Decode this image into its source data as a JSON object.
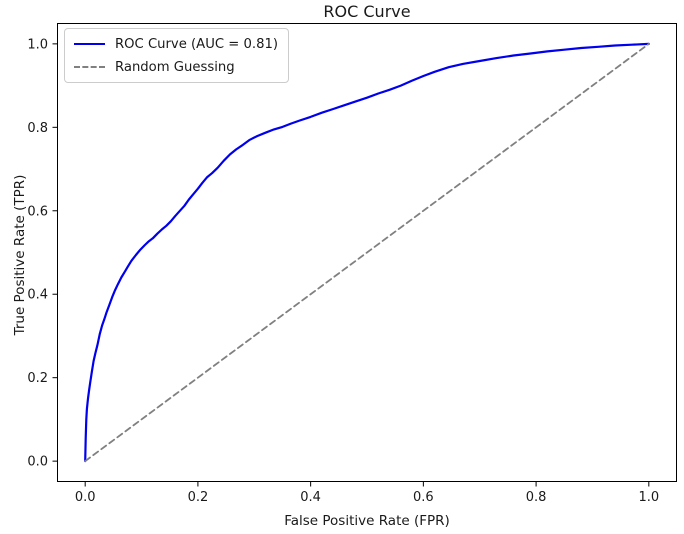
{
  "figure": {
    "background": "#ffffff"
  },
  "chart_data": {
    "type": "line",
    "title": "ROC Curve",
    "xlabel": "False Positive Rate (FPR)",
    "ylabel": "True Positive Rate (TPR)",
    "xlim": [
      -0.05,
      1.05
    ],
    "ylim": [
      -0.05,
      1.05
    ],
    "xticks": [
      0.0,
      0.2,
      0.4,
      0.6,
      0.8,
      1.0
    ],
    "xtick_labels": [
      "0.0",
      "0.2",
      "0.4",
      "0.6",
      "0.8",
      "1.0"
    ],
    "yticks": [
      0.0,
      0.2,
      0.4,
      0.6,
      0.8,
      1.0
    ],
    "ytick_labels": [
      "0.0",
      "0.2",
      "0.4",
      "0.6",
      "0.8",
      "1.0"
    ],
    "grid": false,
    "legend_position": "upper-left",
    "auc": 0.81,
    "axis_color": "#000000",
    "text_color": "#1a1a1a",
    "series": [
      {
        "name": "ROC Curve (AUC = 0.81)",
        "color": "#0000ee",
        "style": "solid",
        "width": 2.2,
        "dash": "",
        "points": [
          [
            0.0,
            0.0
          ],
          [
            0.001,
            0.055
          ],
          [
            0.002,
            0.1
          ],
          [
            0.003,
            0.125
          ],
          [
            0.005,
            0.15
          ],
          [
            0.007,
            0.17
          ],
          [
            0.009,
            0.19
          ],
          [
            0.012,
            0.215
          ],
          [
            0.015,
            0.24
          ],
          [
            0.018,
            0.258
          ],
          [
            0.022,
            0.28
          ],
          [
            0.026,
            0.305
          ],
          [
            0.03,
            0.325
          ],
          [
            0.034,
            0.34
          ],
          [
            0.038,
            0.357
          ],
          [
            0.043,
            0.375
          ],
          [
            0.048,
            0.393
          ],
          [
            0.053,
            0.41
          ],
          [
            0.058,
            0.424
          ],
          [
            0.064,
            0.44
          ],
          [
            0.07,
            0.453
          ],
          [
            0.076,
            0.467
          ],
          [
            0.082,
            0.48
          ],
          [
            0.09,
            0.494
          ],
          [
            0.098,
            0.507
          ],
          [
            0.106,
            0.518
          ],
          [
            0.113,
            0.527
          ],
          [
            0.12,
            0.534
          ],
          [
            0.128,
            0.545
          ],
          [
            0.136,
            0.555
          ],
          [
            0.144,
            0.564
          ],
          [
            0.152,
            0.575
          ],
          [
            0.16,
            0.588
          ],
          [
            0.168,
            0.6
          ],
          [
            0.176,
            0.612
          ],
          [
            0.184,
            0.627
          ],
          [
            0.192,
            0.64
          ],
          [
            0.2,
            0.653
          ],
          [
            0.208,
            0.667
          ],
          [
            0.216,
            0.68
          ],
          [
            0.225,
            0.69
          ],
          [
            0.235,
            0.703
          ],
          [
            0.246,
            0.72
          ],
          [
            0.257,
            0.735
          ],
          [
            0.268,
            0.747
          ],
          [
            0.28,
            0.758
          ],
          [
            0.292,
            0.77
          ],
          [
            0.305,
            0.779
          ],
          [
            0.32,
            0.787
          ],
          [
            0.335,
            0.795
          ],
          [
            0.35,
            0.801
          ],
          [
            0.365,
            0.809
          ],
          [
            0.38,
            0.816
          ],
          [
            0.4,
            0.825
          ],
          [
            0.42,
            0.835
          ],
          [
            0.44,
            0.844
          ],
          [
            0.46,
            0.853
          ],
          [
            0.48,
            0.862
          ],
          [
            0.5,
            0.871
          ],
          [
            0.52,
            0.881
          ],
          [
            0.54,
            0.89
          ],
          [
            0.56,
            0.9
          ],
          [
            0.58,
            0.912
          ],
          [
            0.6,
            0.923
          ],
          [
            0.62,
            0.933
          ],
          [
            0.645,
            0.944
          ],
          [
            0.67,
            0.952
          ],
          [
            0.7,
            0.959
          ],
          [
            0.73,
            0.966
          ],
          [
            0.76,
            0.972
          ],
          [
            0.79,
            0.977
          ],
          [
            0.82,
            0.982
          ],
          [
            0.85,
            0.986
          ],
          [
            0.88,
            0.99
          ],
          [
            0.91,
            0.993
          ],
          [
            0.94,
            0.996
          ],
          [
            0.97,
            0.998
          ],
          [
            1.0,
            1.0
          ]
        ]
      },
      {
        "name": "Random Guessing",
        "color": "#808080",
        "style": "dashed",
        "width": 1.8,
        "dash": "6,4",
        "points": [
          [
            0.0,
            0.0
          ],
          [
            1.0,
            1.0
          ]
        ]
      }
    ]
  }
}
